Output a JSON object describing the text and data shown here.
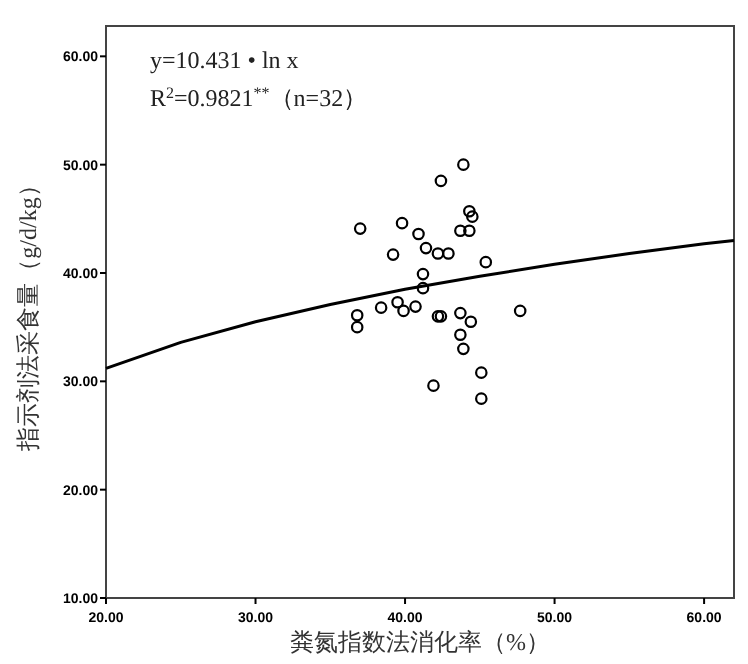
{
  "chart_data": {
    "type": "scatter",
    "xlabel": "粪氮指数法消化率（%）",
    "ylabel": "指示剂法采食量（g/d/kg）",
    "annotations": [
      "y=10.431 • ln x",
      "R$^{2}$=0.9821$^{**}$（n=32）"
    ],
    "xlim": [
      20,
      62
    ],
    "ylim": [
      10,
      62.8
    ],
    "xticks": [
      {
        "value": 20,
        "label": "20.00"
      },
      {
        "value": 30,
        "label": "30.00"
      },
      {
        "value": 40,
        "label": "40.00"
      },
      {
        "value": 50,
        "label": "50.00"
      },
      {
        "value": 60,
        "label": "60.00"
      }
    ],
    "yticks": [
      {
        "value": 10,
        "label": "10.00"
      },
      {
        "value": 20,
        "label": "20.00"
      },
      {
        "value": 30,
        "label": "30.00"
      },
      {
        "value": 40,
        "label": "40.00"
      },
      {
        "value": 50,
        "label": "50.00"
      },
      {
        "value": 60,
        "label": "60.00"
      }
    ],
    "grid": false,
    "marker": "circle",
    "series": [
      {
        "color": "#000000",
        "x": [
          36.8,
          36.8,
          38.4,
          39.2,
          39.5,
          39.9,
          40.7,
          41.2,
          41.2,
          41.4,
          41.9,
          42.2,
          42.9,
          42.2,
          42.4,
          43.7,
          43.7,
          43.9,
          44.4,
          45.1,
          45.1,
          45.4,
          47.7,
          37.0,
          39.8,
          40.9,
          42.4,
          43.9,
          44.3,
          44.5,
          43.7,
          44.3
        ],
        "values": [
          36.1,
          35.0,
          36.8,
          41.7,
          37.3,
          36.5,
          36.9,
          39.9,
          38.6,
          42.3,
          29.6,
          41.8,
          41.8,
          36.0,
          36.0,
          36.3,
          34.3,
          33.0,
          35.5,
          30.8,
          28.4,
          41.0,
          36.5,
          44.1,
          44.6,
          43.6,
          48.5,
          50.0,
          45.7,
          45.2,
          43.9,
          43.9
        ]
      },
      {
        "type": "line",
        "color": "#000000",
        "marker": "none",
        "x": [
          20,
          25,
          30,
          35,
          40,
          45,
          50,
          55,
          60,
          62
        ],
        "values": [
          31.2,
          33.6,
          35.5,
          37.1,
          38.5,
          39.7,
          40.8,
          41.8,
          42.7,
          43.0
        ]
      }
    ]
  }
}
